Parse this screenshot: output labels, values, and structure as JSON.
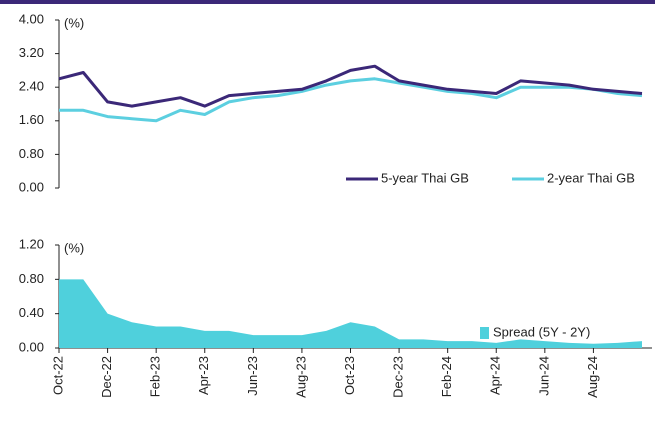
{
  "chart_data": [
    {
      "type": "line",
      "annotation": "(%)",
      "categories": [
        "Oct-22",
        null,
        "Dec-22",
        null,
        "Feb-23",
        null,
        "Apr-23",
        null,
        "Jun-23",
        null,
        "Aug-23",
        null,
        "Oct-23",
        null,
        "Dec-23",
        null,
        "Feb-24",
        null,
        "Apr-24",
        null,
        "Jun-24",
        null,
        "Aug-24",
        null,
        null
      ],
      "series": [
        {
          "name": "5-year Thai GB",
          "color": "#3b2878",
          "values": [
            2.6,
            2.75,
            2.05,
            1.95,
            2.05,
            2.15,
            1.95,
            2.2,
            2.25,
            2.3,
            2.35,
            2.55,
            2.8,
            2.9,
            2.55,
            2.45,
            2.35,
            2.3,
            2.25,
            2.55,
            2.5,
            2.45,
            2.35,
            2.3,
            2.25
          ]
        },
        {
          "name": "2-year Thai GB",
          "color": "#5ccfe0",
          "values": [
            1.85,
            1.85,
            1.7,
            1.65,
            1.6,
            1.85,
            1.75,
            2.05,
            2.15,
            2.2,
            2.3,
            2.45,
            2.55,
            2.6,
            2.5,
            2.4,
            2.3,
            2.25,
            2.15,
            2.4,
            2.4,
            2.4,
            2.35,
            2.25,
            2.2
          ]
        }
      ],
      "ylim": [
        0,
        4
      ],
      "yticks": [
        {
          "value": 0,
          "label": "0.00"
        },
        {
          "value": 0.8,
          "label": "0.80"
        },
        {
          "value": 1.6,
          "label": "1.60"
        },
        {
          "value": 2.4,
          "label": "2.40"
        },
        {
          "value": 3.2,
          "label": "3.20"
        },
        {
          "value": 4,
          "label": "4.00"
        }
      ],
      "legend": "lower right"
    },
    {
      "type": "area",
      "annotation": "(%)",
      "categories": [
        "Oct-22",
        null,
        "Dec-22",
        null,
        "Feb-23",
        null,
        "Apr-23",
        null,
        "Jun-23",
        null,
        "Aug-23",
        null,
        "Oct-23",
        null,
        "Dec-23",
        null,
        "Feb-24",
        null,
        "Apr-24",
        null,
        "Jun-24",
        null,
        "Aug-24",
        null,
        null
      ],
      "series": [
        {
          "name": "Spread (5Y - 2Y)",
          "color": "#4fd0dc",
          "values": [
            0.8,
            0.8,
            0.4,
            0.3,
            0.25,
            0.25,
            0.2,
            0.2,
            0.15,
            0.15,
            0.15,
            0.2,
            0.3,
            0.25,
            0.1,
            0.1,
            0.08,
            0.08,
            0.06,
            0.1,
            0.08,
            0.06,
            0.05,
            0.06,
            0.08
          ]
        }
      ],
      "ylim": [
        0,
        1.2
      ],
      "yticks": [
        {
          "value": 0,
          "label": "0.00"
        },
        {
          "value": 0.4,
          "label": "0.40"
        },
        {
          "value": 0.8,
          "label": "0.80"
        },
        {
          "value": 1.2,
          "label": "1.20"
        }
      ],
      "legend": "lower right"
    }
  ]
}
